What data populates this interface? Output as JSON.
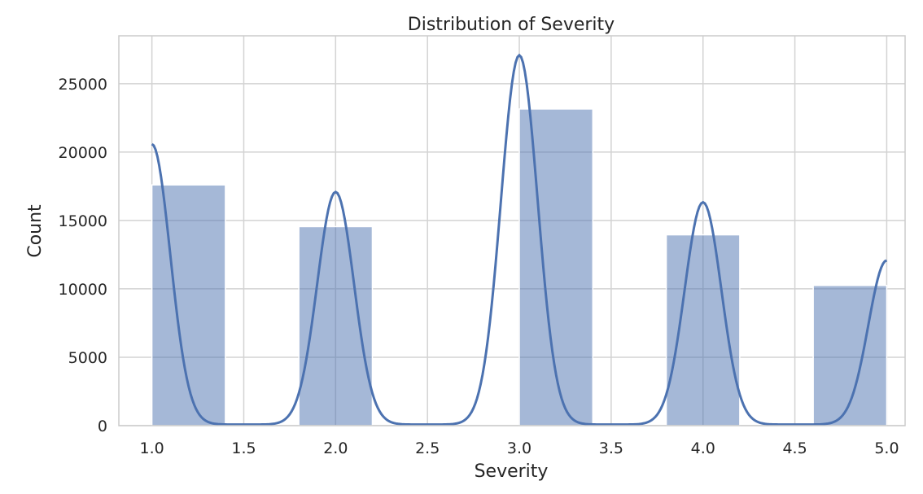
{
  "chart_data": {
    "type": "bar",
    "title": "Distribution of Severity",
    "xlabel": "Severity",
    "ylabel": "Count",
    "xlim": [
      0.82,
      5.1
    ],
    "ylim": [
      0,
      28500
    ],
    "xticks": [
      "1.0",
      "1.5",
      "2.0",
      "2.5",
      "3.0",
      "3.5",
      "4.0",
      "4.5",
      "5.0"
    ],
    "yticks": [
      "0",
      "5000",
      "10000",
      "15000",
      "20000",
      "25000"
    ],
    "grid": true,
    "colors": {
      "bar": "#4c72b0",
      "bar_opacity": 0.5,
      "kde": "#4c72b0",
      "grid": "#d3d3d3",
      "spine": "#cccccc"
    },
    "bins": [
      {
        "x0": 1.0,
        "x1": 1.4,
        "count": 17600
      },
      {
        "x0": 1.8,
        "x1": 2.2,
        "count": 14550
      },
      {
        "x0": 3.0,
        "x1": 3.4,
        "count": 23150
      },
      {
        "x0": 3.8,
        "x1": 4.2,
        "count": 13950
      },
      {
        "x0": 4.6,
        "x1": 5.0,
        "count": 10250
      }
    ],
    "kde_peaks": [
      {
        "x": 1.0,
        "y": 20500
      },
      {
        "x": 2.0,
        "y": 17000
      },
      {
        "x": 3.0,
        "y": 27000
      },
      {
        "x": 4.0,
        "y": 16250
      },
      {
        "x": 5.0,
        "y": 12000
      }
    ],
    "kde_sigma": 0.1
  }
}
